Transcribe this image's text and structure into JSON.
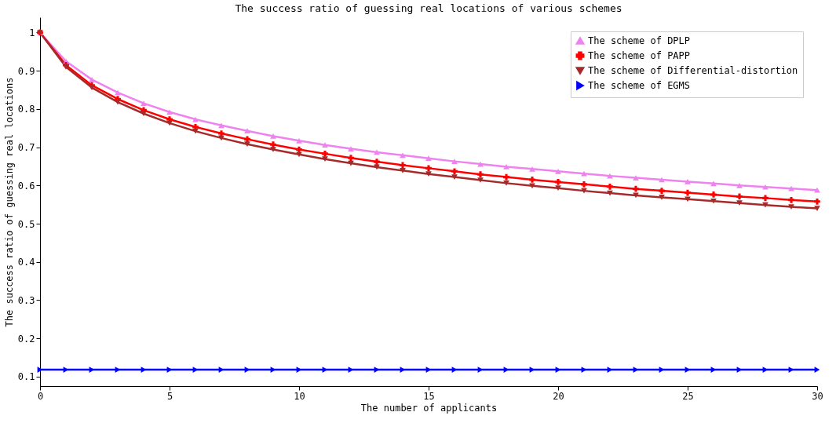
{
  "chart_data": {
    "type": "line",
    "title": "The success ratio of guessing real locations of various schemes",
    "xlabel": "The number of applicants",
    "ylabel": "The success ratio of guessing real locations",
    "x": [
      0,
      1,
      2,
      3,
      4,
      5,
      6,
      7,
      8,
      9,
      10,
      11,
      12,
      13,
      14,
      15,
      16,
      17,
      18,
      19,
      20,
      21,
      22,
      23,
      24,
      25,
      26,
      27,
      28,
      29,
      30
    ],
    "series": [
      {
        "name": "The scheme of DPLP",
        "color": "#ee82ee",
        "marker": "triangle-up",
        "values": [
          1.0,
          0.925,
          0.877,
          0.843,
          0.815,
          0.792,
          0.773,
          0.757,
          0.743,
          0.729,
          0.717,
          0.706,
          0.696,
          0.687,
          0.679,
          0.671,
          0.663,
          0.656,
          0.649,
          0.643,
          0.637,
          0.631,
          0.625,
          0.62,
          0.615,
          0.61,
          0.605,
          0.6,
          0.596,
          0.592,
          0.588
        ]
      },
      {
        "name": "The scheme of PAPP",
        "color": "#ff0000",
        "marker": "cross",
        "values": [
          1.0,
          0.915,
          0.862,
          0.826,
          0.797,
          0.773,
          0.753,
          0.736,
          0.721,
          0.707,
          0.694,
          0.683,
          0.672,
          0.662,
          0.653,
          0.645,
          0.637,
          0.629,
          0.622,
          0.615,
          0.609,
          0.603,
          0.597,
          0.591,
          0.586,
          0.581,
          0.576,
          0.571,
          0.567,
          0.562,
          0.558
        ]
      },
      {
        "name": "The scheme of Differential-distortion",
        "color": "#a52a2a",
        "marker": "triangle-down",
        "values": [
          1.0,
          0.91,
          0.856,
          0.818,
          0.788,
          0.763,
          0.742,
          0.724,
          0.708,
          0.694,
          0.681,
          0.669,
          0.658,
          0.648,
          0.639,
          0.63,
          0.622,
          0.614,
          0.606,
          0.599,
          0.593,
          0.586,
          0.58,
          0.574,
          0.569,
          0.564,
          0.559,
          0.554,
          0.549,
          0.544,
          0.54
        ]
      },
      {
        "name": "The scheme of EGMS",
        "color": "#0000ff",
        "marker": "triangle-right",
        "values": [
          0.118,
          0.118,
          0.118,
          0.118,
          0.118,
          0.118,
          0.118,
          0.118,
          0.118,
          0.118,
          0.118,
          0.118,
          0.118,
          0.118,
          0.118,
          0.118,
          0.118,
          0.118,
          0.118,
          0.118,
          0.118,
          0.118,
          0.118,
          0.118,
          0.118,
          0.118,
          0.118,
          0.118,
          0.118,
          0.118,
          0.118
        ]
      }
    ],
    "xlim": [
      0,
      30
    ],
    "xticks": [
      0,
      5,
      10,
      15,
      20,
      25,
      30
    ],
    "ylim": [
      0.075,
      1.04
    ],
    "yticks": [
      0.1,
      0.2,
      0.3,
      0.4,
      0.5,
      0.6,
      0.7,
      0.8,
      0.9,
      {
        "value": 1,
        "label": "1"
      }
    ],
    "legend": "top right",
    "grid": false,
    "line_style": "solid"
  }
}
